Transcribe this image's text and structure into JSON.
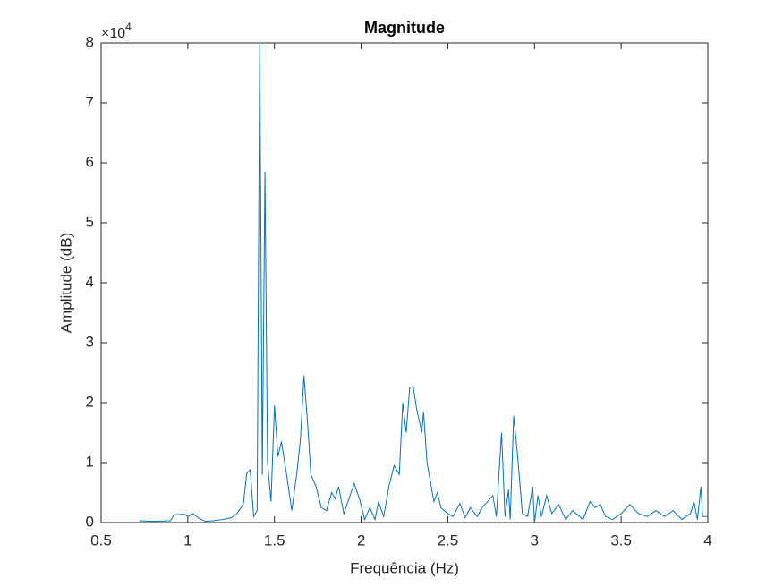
{
  "chart_data": {
    "type": "line",
    "title": "Magnitude",
    "xlabel": "Frequência (Hz)",
    "ylabel": "Amplitude (dB)",
    "y_multiplier": {
      "base": "×10",
      "exponent": "4"
    },
    "color": "#0072BD",
    "grid": false,
    "xlim": [
      0.5,
      4
    ],
    "xticks": [
      0.5,
      1,
      1.5,
      2,
      2.5,
      3,
      3.5,
      4
    ],
    "ylim": [
      0,
      80000
    ],
    "yticks": [
      {
        "value": 0,
        "label": "0"
      },
      {
        "value": 10000,
        "label": "1"
      },
      {
        "value": 20000,
        "label": "2"
      },
      {
        "value": 30000,
        "label": "3"
      },
      {
        "value": 40000,
        "label": "4"
      },
      {
        "value": 50000,
        "label": "5"
      },
      {
        "value": 60000,
        "label": "6"
      },
      {
        "value": 70000,
        "label": "7"
      },
      {
        "value": 80000,
        "label": "8"
      }
    ],
    "x": [
      0.72,
      0.8,
      0.9,
      0.92,
      0.98,
      1.0,
      1.03,
      1.06,
      1.1,
      1.15,
      1.2,
      1.25,
      1.28,
      1.32,
      1.34,
      1.36,
      1.38,
      1.4,
      1.415,
      1.43,
      1.445,
      1.46,
      1.48,
      1.5,
      1.52,
      1.54,
      1.57,
      1.6,
      1.63,
      1.65,
      1.67,
      1.69,
      1.71,
      1.74,
      1.77,
      1.8,
      1.83,
      1.85,
      1.87,
      1.9,
      1.93,
      1.96,
      1.99,
      2.02,
      2.05,
      2.08,
      2.1,
      2.13,
      2.16,
      2.19,
      2.22,
      2.24,
      2.26,
      2.28,
      2.3,
      2.32,
      2.35,
      2.36,
      2.38,
      2.42,
      2.44,
      2.46,
      2.5,
      2.53,
      2.57,
      2.6,
      2.63,
      2.67,
      2.7,
      2.73,
      2.76,
      2.78,
      2.81,
      2.83,
      2.85,
      2.86,
      2.88,
      2.9,
      2.93,
      2.96,
      2.99,
      3.0,
      3.02,
      3.04,
      3.07,
      3.1,
      3.14,
      3.18,
      3.22,
      3.28,
      3.32,
      3.35,
      3.38,
      3.41,
      3.45,
      3.5,
      3.55,
      3.6,
      3.65,
      3.7,
      3.75,
      3.8,
      3.85,
      3.9,
      3.92,
      3.94,
      3.96,
      3.97,
      4.0
    ],
    "values": [
      300,
      200,
      300,
      1300,
      1400,
      1000,
      1500,
      800,
      200,
      300,
      500,
      800,
      1400,
      3000,
      8200,
      8800,
      1000,
      2000,
      80000,
      8000,
      58500,
      10000,
      3500,
      19500,
      11000,
      13500,
      8000,
      2000,
      8500,
      14000,
      24500,
      17000,
      8000,
      6000,
      2500,
      2000,
      5000,
      4000,
      6000,
      1500,
      4000,
      6500,
      4000,
      500,
      2500,
      500,
      3500,
      1000,
      6000,
      9500,
      8000,
      20000,
      15000,
      22500,
      22700,
      19000,
      15000,
      18500,
      10000,
      3500,
      5000,
      2500,
      1500,
      1000,
      3200,
      800,
      2500,
      1000,
      2600,
      3500,
      4500,
      1000,
      15000,
      1000,
      5500,
      500,
      17800,
      12000,
      1500,
      1000,
      6000,
      0,
      4500,
      1000,
      4500,
      1500,
      3000,
      500,
      2000,
      500,
      3500,
      2500,
      3000,
      1000,
      500,
      1500,
      3000,
      1500,
      1000,
      2000,
      1000,
      2000,
      500,
      1500,
      3500,
      500,
      6000,
      1000,
      1000
    ]
  }
}
